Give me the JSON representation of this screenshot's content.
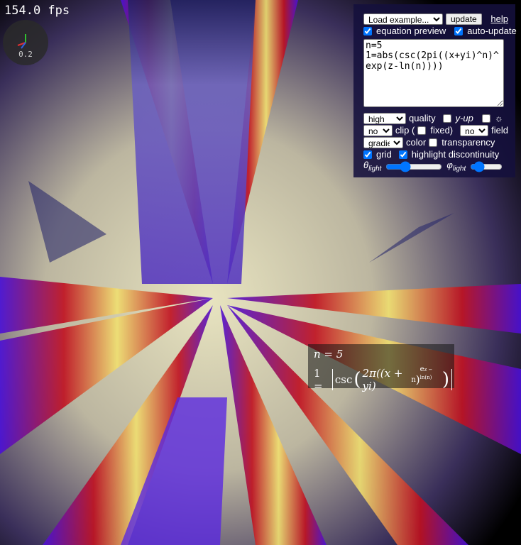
{
  "overlay": {
    "fps": "154.0 fps",
    "axis_scale": "0.2"
  },
  "controls": {
    "example_select": "Load example...",
    "update_button": "update",
    "help_link": "help",
    "equation_preview": {
      "label": "equation preview",
      "checked": true
    },
    "auto_update": {
      "label": "auto-update",
      "checked": true
    },
    "equation_text": "n=5\n1=abs(csc(2pi((x+yi)^n)^exp(z-ln(n))))",
    "quality_select": "high",
    "quality_label": "quality",
    "y_up": {
      "label": "y-up",
      "checked": false
    },
    "light_toggle": {
      "label": "☼",
      "checked": false
    },
    "clip_select": "no",
    "clip_label": "clip (",
    "fixed": {
      "label": "fixed)",
      "checked": false
    },
    "field_select": "no",
    "field_label": "field",
    "color_select": "gradient",
    "color_label": "color",
    "transparency": {
      "label": "transparency",
      "checked": false
    },
    "grid": {
      "label": "grid",
      "checked": true
    },
    "highlight": {
      "label": "highlight discontinuity",
      "checked": true
    },
    "theta": {
      "symbol": "θ",
      "subscript": "light"
    },
    "phi": {
      "symbol": "φ",
      "subscript": "light"
    }
  },
  "preview": {
    "line1": "n = 5",
    "lhs": "1 =",
    "func": "csc",
    "arg": "2π((x + yi)",
    "exp1": "n",
    "close": ")",
    "exp2": "e",
    "exp3": "z − ln(n)",
    "tail": ")"
  }
}
